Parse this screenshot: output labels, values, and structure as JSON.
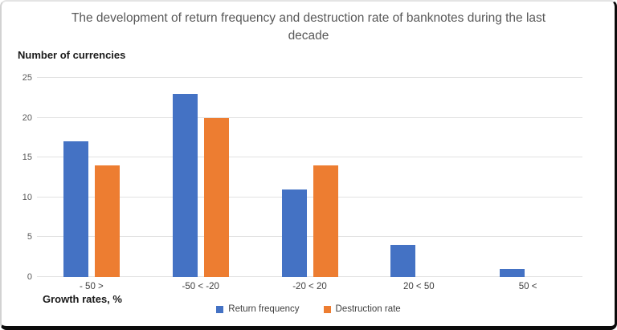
{
  "chart_data": {
    "type": "bar",
    "title": "The development of return frequency and destruction rate of banknotes during the last decade",
    "ylabel": "Number of currencies",
    "xlabel": "Growth rates, %",
    "categories": [
      "- 50 >",
      "-50 < -20",
      "-20 < 20",
      "20 < 50",
      "50 <"
    ],
    "series": [
      {
        "name": "Return frequency",
        "color": "#4472C4",
        "values": [
          17,
          23,
          11,
          4,
          1
        ]
      },
      {
        "name": "Destruction rate",
        "color": "#ED7D31",
        "values": [
          14,
          20,
          14,
          0,
          0
        ]
      }
    ],
    "ylim": [
      0,
      25
    ],
    "ytick_step": 5,
    "grid": true,
    "legend_position": "bottom"
  }
}
